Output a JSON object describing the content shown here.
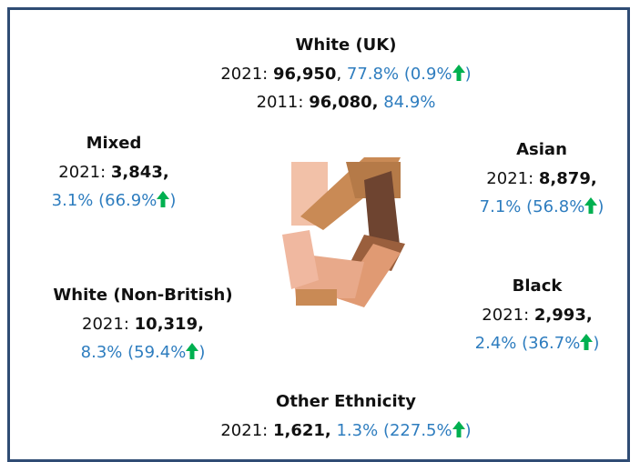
{
  "groups": [
    {
      "name": "White (UK)",
      "lines": [
        {
          "year": "2021:",
          "count": "96,950",
          "sep": ",",
          "share": "77.8%",
          "change": "(0.9%",
          "end": ")"
        },
        {
          "year": "2011:",
          "count": "96,080,",
          "share": "84.9%"
        }
      ]
    },
    {
      "name": "Mixed",
      "lines": [
        {
          "year": "2021:",
          "count": "3,843,"
        },
        {
          "share": "3.1%",
          "change": "(66.9%",
          "end": ")"
        }
      ]
    },
    {
      "name": "Asian",
      "lines": [
        {
          "year": "2021:",
          "count": "8,879,"
        },
        {
          "share": "7.1%",
          "change": "(56.8%",
          "end": ")"
        }
      ]
    },
    {
      "name": "White (Non-British)",
      "lines": [
        {
          "year": "2021:",
          "count": "10,319,"
        },
        {
          "share": "8.3%",
          "change": "(59.4%",
          "end": ")"
        }
      ]
    },
    {
      "name": "Black",
      "lines": [
        {
          "year": "2021:",
          "count": "2,993,"
        },
        {
          "share": "2.4%",
          "change": "(36.7%",
          "end": ")"
        }
      ]
    },
    {
      "name": "Other Ethnicity",
      "lines": [
        {
          "year": "2021:",
          "count": "1,621,",
          "share": "1.3%",
          "change": "(227.5%",
          "end": ")"
        }
      ]
    }
  ]
}
